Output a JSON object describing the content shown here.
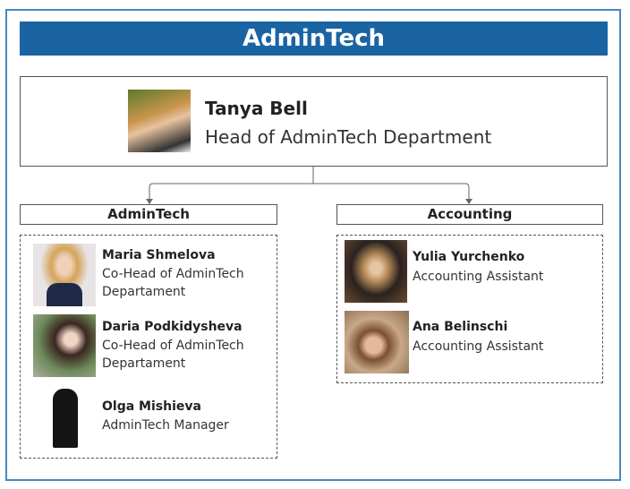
{
  "title": "AdminTech",
  "head": {
    "name": "Tanya Bell",
    "role": "Head of AdminTech Department"
  },
  "departments": [
    {
      "label": "AdminTech",
      "members": [
        {
          "name": "Maria Shmelova",
          "role": "Co-Head of AdminTech Departament"
        },
        {
          "name": "Daria Podkidysheva",
          "role": "Co-Head of AdminTech Departament"
        },
        {
          "name": "Olga Mishieva",
          "role": "AdminTech Manager"
        }
      ]
    },
    {
      "label": "Accounting",
      "members": [
        {
          "name": "Yulia Yurchenko",
          "role": "Accounting Assistant"
        },
        {
          "name": "Ana Belinschi",
          "role": "Accounting Assistant"
        }
      ]
    }
  ],
  "colors": {
    "title_bar": "#1a64a3",
    "frame": "#4a86c0"
  }
}
